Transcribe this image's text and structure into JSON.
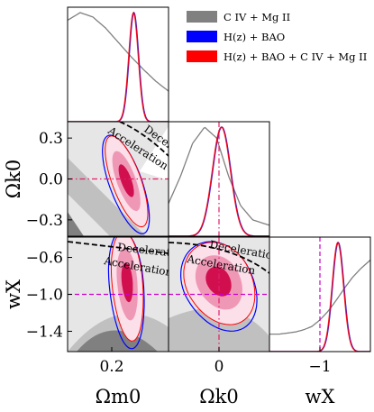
{
  "chart_data": {
    "type": "corner",
    "parameters": [
      {
        "symbol": "Ωm0",
        "ticks": [
          "0.2"
        ],
        "tick_values": [
          0.2
        ],
        "range": [
          0.06,
          0.38
        ]
      },
      {
        "symbol": "Ωk0",
        "ticks": [
          "0.3",
          "0.0",
          "−0.3"
        ],
        "tick_values": [
          0.3,
          0.0,
          -0.3
        ],
        "range": [
          -0.42,
          0.42
        ],
        "x_ticks": [
          "0"
        ],
        "x_tick_values": [
          0.0
        ]
      },
      {
        "symbol": "wX",
        "ticks": [
          "−0.6",
          "−1.0",
          "−1.4"
        ],
        "tick_values": [
          -0.6,
          -1.0,
          -1.4
        ],
        "range": [
          -1.62,
          -0.38
        ],
        "x_ticks": [
          "−1"
        ],
        "x_tick_values": [
          -1.0
        ]
      }
    ],
    "legend": [
      {
        "label": "C IV + Mg II",
        "color": "#808080"
      },
      {
        "label": "H(z) + BAO",
        "color": "#0000ff"
      },
      {
        "label": "H(z) + BAO + C IV + Mg II",
        "color": "#ff0000"
      }
    ],
    "reference_lines": {
      "Ωk0": 0.0,
      "wX": -1.0
    },
    "annotations": {
      "accel_label": "Acceleration",
      "decel_label": "Deceleration",
      "decel_label_short": "Decel"
    },
    "marginals": {
      "Ωm0": {
        "x": [
          0.06,
          0.1,
          0.14,
          0.18,
          0.22,
          0.26,
          0.3,
          0.34,
          0.38
        ],
        "C IV + Mg II": [
          0.93,
          1.0,
          0.96,
          0.86,
          0.73,
          0.6,
          0.48,
          0.37,
          0.28
        ],
        "H(z) + BAO + C IV + Mg II": {
          "peak": 0.269,
          "sigma": 0.015
        }
      },
      "Ωk0": {
        "x": [
          -0.42,
          -0.32,
          -0.22,
          -0.12,
          -0.02,
          0.08,
          0.18,
          0.28,
          0.42
        ],
        "C IV + Mg II": [
          0.3,
          0.55,
          0.85,
          1.0,
          0.9,
          0.55,
          0.28,
          0.15,
          0.1
        ],
        "H(z) + BAO + C IV + Mg II": {
          "peak": 0.02,
          "sigma": 0.075
        }
      },
      "wX": {
        "x": [
          -1.62,
          -1.5,
          -1.4,
          -1.3,
          -1.2,
          -1.1,
          -1.0,
          -0.9,
          -0.8,
          -0.7,
          -0.6,
          -0.5,
          -0.38
        ],
        "C IV + Mg II": [
          0.16,
          0.16,
          0.17,
          0.18,
          0.2,
          0.23,
          0.29,
          0.37,
          0.47,
          0.58,
          0.68,
          0.76,
          0.84
        ],
        "H(z) + BAO + C IV + Mg II": {
          "peak": -0.78,
          "sigma": 0.07
        }
      }
    }
  }
}
